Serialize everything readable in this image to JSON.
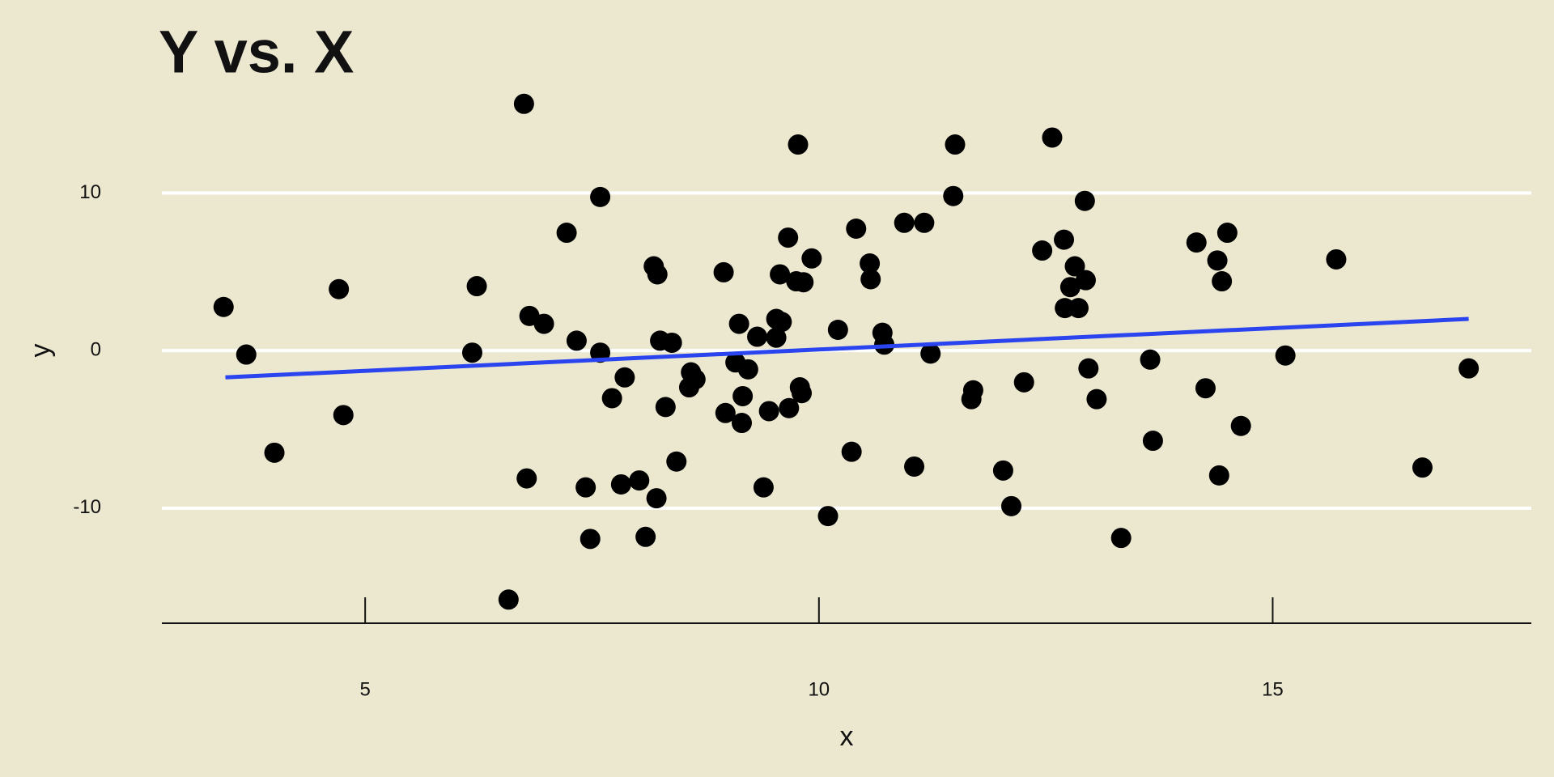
{
  "chart_data": {
    "type": "scatter",
    "title": "Y vs. X",
    "x_label": "x",
    "y_label": "y",
    "x": [
      3.44,
      3.69,
      4.0,
      4.71,
      4.76,
      6.18,
      6.23,
      6.58,
      6.75,
      6.78,
      6.81,
      6.97,
      7.22,
      7.33,
      7.43,
      7.48,
      7.59,
      7.59,
      7.72,
      7.82,
      7.86,
      8.02,
      8.09,
      8.18,
      8.22,
      8.21,
      8.25,
      8.31,
      8.38,
      8.43,
      8.57,
      8.59,
      8.64,
      8.95,
      8.97,
      9.08,
      9.12,
      9.15,
      9.16,
      9.22,
      9.32,
      9.39,
      9.45,
      9.53,
      9.53,
      9.57,
      9.59,
      9.66,
      9.67,
      9.75,
      9.77,
      9.79,
      9.83,
      9.81,
      9.92,
      10.1,
      10.21,
      10.36,
      10.41,
      10.56,
      10.57,
      10.7,
      10.72,
      10.94,
      11.05,
      11.16,
      11.23,
      11.48,
      11.5,
      11.68,
      11.7,
      12.03,
      12.12,
      12.26,
      12.46,
      12.57,
      12.7,
      12.71,
      12.77,
      12.82,
      12.86,
      12.93,
      12.94,
      12.97,
      13.06,
      13.33,
      13.65,
      13.68,
      14.16,
      14.26,
      14.39,
      14.41,
      14.44,
      14.5,
      14.65,
      15.14,
      15.7,
      16.65,
      17.16
    ],
    "values": [
      2.77,
      -0.25,
      -6.48,
      3.9,
      -4.09,
      -0.13,
      4.09,
      -15.8,
      15.66,
      -8.11,
      2.2,
      1.7,
      7.48,
      0.63,
      -8.68,
      -11.95,
      9.75,
      -0.13,
      -3.02,
      -8.49,
      -1.7,
      -8.24,
      -11.82,
      5.35,
      4.84,
      -9.37,
      0.63,
      -3.58,
      0.5,
      -7.04,
      -2.33,
      -1.38,
      -1.82,
      4.97,
      -3.96,
      -0.75,
      1.7,
      -4.59,
      -2.89,
      -1.19,
      0.88,
      -8.68,
      -3.84,
      2.01,
      0.82,
      4.84,
      1.82,
      7.17,
      -3.65,
      4.4,
      13.08,
      -2.33,
      4.34,
      -2.7,
      5.85,
      -10.5,
      1.32,
      -6.42,
      7.74,
      5.53,
      4.53,
      1.13,
      0.38,
      8.11,
      -7.36,
      8.11,
      -0.19,
      9.81,
      13.08,
      -3.08,
      -2.52,
      -7.61,
      -9.87,
      -2.01,
      6.35,
      13.52,
      7.04,
      2.7,
      4.03,
      5.35,
      2.7,
      9.5,
      4.47,
      -1.13,
      -3.08,
      -11.89,
      -0.57,
      -5.72,
      6.86,
      -2.39,
      5.72,
      -7.92,
      4.4,
      7.48,
      -4.78,
      -0.31,
      5.79,
      -7.42,
      -1.13
    ],
    "color": "#000000",
    "fit": {
      "x": [
        3.46,
        17.16
      ],
      "values": [
        -1.7,
        2.01
      ],
      "color": "#2a45f0"
    },
    "xlim": [
      2.76,
      17.85
    ],
    "ylim": [
      -17.3,
      16.6
    ],
    "xticks": [
      5,
      10,
      15
    ],
    "yticks": [
      -10,
      0,
      10
    ],
    "grid": true
  }
}
